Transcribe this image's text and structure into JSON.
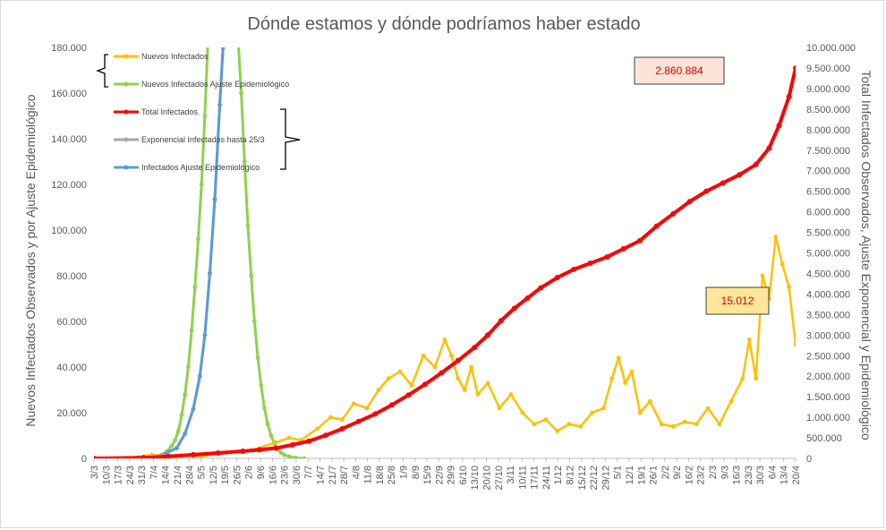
{
  "chart_data": {
    "type": "line",
    "title": "Dónde estamos y dónde podríamos haber estado",
    "ylabel_left": "Nuevos Infectados Observados y por Ajuste Epidemiológico",
    "ylabel_right": "Total Infectados Observados, Ajuste Exponencial y Epidemiológico",
    "ylim_left": [
      0,
      180000
    ],
    "ylim_right": [
      0,
      10000000
    ],
    "yticks_left": [
      "0",
      "20.000",
      "40.000",
      "60.000",
      "80.000",
      "100.000",
      "120.000",
      "140.000",
      "160.000",
      "180.000"
    ],
    "yticks_right": [
      "0",
      "500.000",
      "1.000.000",
      "1.500.000",
      "2.000.000",
      "2.500.000",
      "3.000.000",
      "3.500.000",
      "4.000.000",
      "4.500.000",
      "5.000.000",
      "5.500.000",
      "6.000.000",
      "6.500.000",
      "7.000.000",
      "7.500.000",
      "8.000.000",
      "8.500.000",
      "9.000.000",
      "9.500.000",
      "10.000.000"
    ],
    "xticks": [
      "3/3",
      "10/3",
      "17/3",
      "24/3",
      "31/3",
      "7/4",
      "14/4",
      "21/4",
      "28/4",
      "5/5",
      "12/5",
      "19/5",
      "26/5",
      "2/6",
      "9/6",
      "16/6",
      "23/6",
      "30/6",
      "7/7",
      "14/7",
      "21/7",
      "28/7",
      "4/8",
      "11/8",
      "18/8",
      "25/8",
      "1/9",
      "8/9",
      "15/9",
      "22/9",
      "29/9",
      "6/10",
      "13/10",
      "20/10",
      "27/10",
      "3/11",
      "10/11",
      "17/11",
      "24/11",
      "1/12",
      "8/12",
      "15/12",
      "22/12",
      "29/12",
      "5/1",
      "12/1",
      "19/1",
      "26/1",
      "2/2",
      "9/2",
      "16/2",
      "23/2",
      "2/3",
      "9/3",
      "16/3",
      "23/3",
      "30/3",
      "6/4",
      "13/4",
      "20/4"
    ],
    "x_range_days": [
      0,
      424
    ],
    "grid": false,
    "legend_position": "top-left",
    "series": [
      {
        "name": "Nuevos Infectados",
        "axis": "left",
        "color": "#FFC000",
        "points": [
          [
            0,
            0
          ],
          [
            20,
            200
          ],
          [
            35,
            1500
          ],
          [
            50,
            1000
          ],
          [
            65,
            1000
          ],
          [
            80,
            2500
          ],
          [
            95,
            3500
          ],
          [
            110,
            7000
          ],
          [
            118,
            9000
          ],
          [
            125,
            8000
          ],
          [
            135,
            13000
          ],
          [
            143,
            18000
          ],
          [
            150,
            17000
          ],
          [
            157,
            24000
          ],
          [
            165,
            22000
          ],
          [
            172,
            30000
          ],
          [
            178,
            35000
          ],
          [
            185,
            38000
          ],
          [
            192,
            32000
          ],
          [
            199,
            45000
          ],
          [
            206,
            40000
          ],
          [
            212,
            52000
          ],
          [
            216,
            45000
          ],
          [
            220,
            35000
          ],
          [
            224,
            30000
          ],
          [
            228,
            40000
          ],
          [
            232,
            28000
          ],
          [
            238,
            33000
          ],
          [
            245,
            22000
          ],
          [
            252,
            28000
          ],
          [
            259,
            20000
          ],
          [
            266,
            15000
          ],
          [
            273,
            17000
          ],
          [
            280,
            12000
          ],
          [
            287,
            15000
          ],
          [
            294,
            14000
          ],
          [
            301,
            20000
          ],
          [
            308,
            22000
          ],
          [
            313,
            35000
          ],
          [
            317,
            44000
          ],
          [
            321,
            33000
          ],
          [
            325,
            38000
          ],
          [
            330,
            20000
          ],
          [
            336,
            25000
          ],
          [
            343,
            15000
          ],
          [
            350,
            14000
          ],
          [
            357,
            16000
          ],
          [
            364,
            15000
          ],
          [
            371,
            22000
          ],
          [
            378,
            15000
          ],
          [
            385,
            25000
          ],
          [
            392,
            35000
          ],
          [
            396,
            52000
          ],
          [
            400,
            35000
          ],
          [
            404,
            80000
          ],
          [
            408,
            70000
          ],
          [
            412,
            97000
          ],
          [
            416,
            85000
          ],
          [
            420,
            75000
          ],
          [
            424,
            50000
          ]
        ]
      },
      {
        "name": "Nuevos Infectados Ajuste Epidemiológico",
        "axis": "left",
        "color": "#92D050",
        "points": [
          [
            0,
            0
          ],
          [
            20,
            30
          ],
          [
            30,
            150
          ],
          [
            35,
            500
          ],
          [
            38,
            900
          ],
          [
            41,
            1600
          ],
          [
            44,
            3000
          ],
          [
            47,
            5500
          ],
          [
            49,
            8000
          ],
          [
            51,
            12000
          ],
          [
            53,
            19000
          ],
          [
            55,
            28000
          ],
          [
            57,
            40000
          ],
          [
            59,
            56000
          ],
          [
            61,
            75000
          ],
          [
            63,
            96000
          ],
          [
            65,
            120000
          ],
          [
            67,
            150000
          ],
          [
            69,
            185000
          ],
          [
            87,
            185000
          ],
          [
            89,
            160000
          ],
          [
            91,
            130000
          ],
          [
            93,
            102000
          ],
          [
            95,
            80000
          ],
          [
            97,
            60000
          ],
          [
            99,
            44000
          ],
          [
            101,
            32000
          ],
          [
            103,
            22000
          ],
          [
            105,
            15000
          ],
          [
            107,
            10000
          ],
          [
            109,
            6500
          ],
          [
            111,
            4000
          ],
          [
            113,
            2500
          ],
          [
            115,
            1500
          ],
          [
            118,
            800
          ],
          [
            122,
            200
          ],
          [
            127,
            0
          ]
        ]
      },
      {
        "name": "Total Infectados",
        "axis": "right",
        "color": "#FF0000",
        "points": [
          [
            0,
            0
          ],
          [
            30,
            15000
          ],
          [
            45,
            50000
          ],
          [
            60,
            90000
          ],
          [
            75,
            130000
          ],
          [
            90,
            175000
          ],
          [
            100,
            210000
          ],
          [
            110,
            250000
          ],
          [
            120,
            330000
          ],
          [
            130,
            420000
          ],
          [
            140,
            560000
          ],
          [
            150,
            720000
          ],
          [
            160,
            900000
          ],
          [
            170,
            1080000
          ],
          [
            180,
            1300000
          ],
          [
            190,
            1540000
          ],
          [
            200,
            1800000
          ],
          [
            210,
            2080000
          ],
          [
            220,
            2380000
          ],
          [
            230,
            2700000
          ],
          [
            238,
            3000000
          ],
          [
            246,
            3350000
          ],
          [
            254,
            3650000
          ],
          [
            262,
            3900000
          ],
          [
            270,
            4150000
          ],
          [
            280,
            4400000
          ],
          [
            290,
            4600000
          ],
          [
            300,
            4750000
          ],
          [
            310,
            4900000
          ],
          [
            320,
            5100000
          ],
          [
            330,
            5300000
          ],
          [
            340,
            5650000
          ],
          [
            350,
            5950000
          ],
          [
            360,
            6250000
          ],
          [
            370,
            6500000
          ],
          [
            380,
            6700000
          ],
          [
            390,
            6900000
          ],
          [
            400,
            7150000
          ],
          [
            408,
            7550000
          ],
          [
            414,
            8100000
          ],
          [
            420,
            8800000
          ],
          [
            424,
            9500000
          ]
        ]
      },
      {
        "name": "Exponencial Infectados hasta 25/3",
        "axis": "right",
        "color": "#A5A5A5",
        "points": [
          [
            0,
            0
          ],
          [
            20,
            2000
          ],
          [
            30,
            15000
          ],
          [
            40,
            60000
          ],
          [
            50,
            250000
          ],
          [
            55,
            600000
          ],
          [
            60,
            1200000
          ],
          [
            64,
            2000000
          ],
          [
            67,
            3000000
          ],
          [
            70,
            4500000
          ],
          [
            73,
            6300000
          ],
          [
            76,
            8600000
          ],
          [
            78,
            10000000
          ]
        ]
      },
      {
        "name": "Infectados Ajuste Epidemiológico",
        "axis": "right",
        "color": "#5B9BD5",
        "points": [
          [
            0,
            0
          ],
          [
            30,
            15000
          ],
          [
            40,
            60000
          ],
          [
            50,
            250000
          ],
          [
            55,
            600000
          ],
          [
            60,
            1200000
          ],
          [
            64,
            2000000
          ],
          [
            67,
            3000000
          ],
          [
            70,
            4500000
          ],
          [
            73,
            6300000
          ],
          [
            76,
            8600000
          ],
          [
            78,
            10000000
          ]
        ]
      }
    ],
    "annotations": [
      {
        "text": "2.860.884",
        "target_series": "Total Infectados",
        "fill": "#FCE4D6"
      },
      {
        "text": "15.012",
        "target_series": "Nuevos Infectados",
        "fill": "#FFE699"
      }
    ]
  }
}
